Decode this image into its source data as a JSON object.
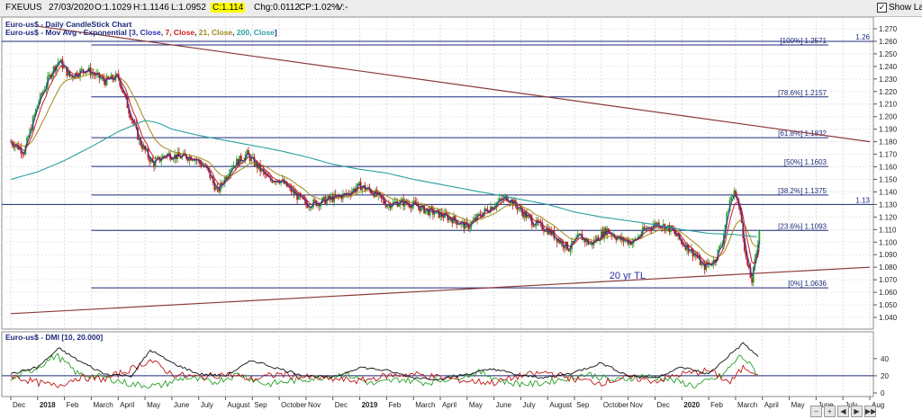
{
  "topbar": {
    "symbol": "FXEUUS",
    "date": "27/03/2020",
    "open": "O:1.1029",
    "high": "H:1.1146",
    "low": "L:1.0952",
    "close": "C:1.114",
    "change": "Chg:0.0112",
    "change_pct": "CP:1.02%",
    "volume": "V:-",
    "show_last_label": "Show Last",
    "show_last_checked": true
  },
  "chart_data": [
    {
      "type": "candlestick",
      "title": "Euro-us$ - Daily CandleStick Chart",
      "subtitle_prefix": "Euro-us$ - Mov Avg - Exponential [",
      "ma_legend": [
        {
          "text": "3, Close",
          "color": "#2d2fa8"
        },
        {
          "text": "7, Close",
          "color": "#d01e1e"
        },
        {
          "text": "21, Close",
          "color": "#a08a1a"
        },
        {
          "text": "200, Close",
          "color": "#2aa0a0"
        }
      ],
      "subtitle_suffix": "]",
      "ylim": [
        1.035,
        1.275
      ],
      "yticks": [
        "1.270",
        "1.260",
        "1.250",
        "1.240",
        "1.230",
        "1.220",
        "1.210",
        "1.200",
        "1.190",
        "1.180",
        "1.170",
        "1.160",
        "1.150",
        "1.140",
        "1.130",
        "1.120",
        "1.110",
        "1.100",
        "1.090",
        "1.080",
        "1.070",
        "1.060",
        "1.050",
        "1.040"
      ],
      "x_months": [
        "Dec",
        "2018",
        "Feb",
        "March",
        "April",
        "May",
        "June",
        "July",
        "August",
        "Sep",
        "October",
        "Nov",
        "Dec",
        "2019",
        "Feb",
        "March",
        "April",
        "May",
        "June",
        "July",
        "August",
        "Sep",
        "October",
        "Nov",
        "Dec",
        "2020",
        "Feb",
        "March",
        "April",
        "May",
        "June",
        "July",
        "Aug"
      ],
      "x_months_bold": [
        "2018",
        "2019",
        "2020"
      ],
      "x_month_index_range": [
        0,
        32
      ],
      "data_end_month_index": 27.9,
      "price_anchors": [
        [
          0.0,
          1.18
        ],
        [
          0.5,
          1.172
        ],
        [
          1.0,
          1.21
        ],
        [
          1.5,
          1.235
        ],
        [
          1.8,
          1.245
        ],
        [
          2.2,
          1.232
        ],
        [
          2.8,
          1.238
        ],
        [
          3.5,
          1.228
        ],
        [
          4.0,
          1.232
        ],
        [
          4.4,
          1.205
        ],
        [
          4.8,
          1.18
        ],
        [
          5.3,
          1.162
        ],
        [
          5.8,
          1.17
        ],
        [
          6.3,
          1.168
        ],
        [
          6.8,
          1.168
        ],
        [
          7.3,
          1.158
        ],
        [
          7.7,
          1.14
        ],
        [
          8.2,
          1.16
        ],
        [
          8.8,
          1.17
        ],
        [
          9.2,
          1.16
        ],
        [
          9.6,
          1.15
        ],
        [
          10.0,
          1.15
        ],
        [
          10.5,
          1.14
        ],
        [
          11.0,
          1.13
        ],
        [
          11.5,
          1.132
        ],
        [
          12.0,
          1.135
        ],
        [
          12.5,
          1.138
        ],
        [
          13.0,
          1.145
        ],
        [
          13.5,
          1.14
        ],
        [
          14.0,
          1.13
        ],
        [
          14.5,
          1.132
        ],
        [
          15.0,
          1.13
        ],
        [
          15.5,
          1.125
        ],
        [
          16.0,
          1.122
        ],
        [
          16.5,
          1.118
        ],
        [
          17.0,
          1.112
        ],
        [
          17.5,
          1.122
        ],
        [
          18.0,
          1.13
        ],
        [
          18.5,
          1.136
        ],
        [
          19.0,
          1.125
        ],
        [
          19.5,
          1.115
        ],
        [
          20.0,
          1.11
        ],
        [
          20.5,
          1.1
        ],
        [
          20.8,
          1.095
        ],
        [
          21.2,
          1.105
        ],
        [
          21.6,
          1.098
        ],
        [
          22.2,
          1.11
        ],
        [
          22.7,
          1.102
        ],
        [
          23.2,
          1.1
        ],
        [
          23.6,
          1.11
        ],
        [
          24.1,
          1.115
        ],
        [
          24.6,
          1.11
        ],
        [
          25.0,
          1.1
        ],
        [
          25.5,
          1.09
        ],
        [
          25.8,
          1.08
        ],
        [
          26.2,
          1.085
        ],
        [
          26.5,
          1.1
        ],
        [
          26.8,
          1.135
        ],
        [
          27.0,
          1.14
        ],
        [
          27.2,
          1.12
        ],
        [
          27.4,
          1.085
        ],
        [
          27.6,
          1.068
        ],
        [
          27.8,
          1.095
        ],
        [
          27.9,
          1.114
        ]
      ],
      "ema200_anchors": [
        [
          0.0,
          1.15
        ],
        [
          1.0,
          1.156
        ],
        [
          2.0,
          1.165
        ],
        [
          3.0,
          1.176
        ],
        [
          4.0,
          1.188
        ],
        [
          5.0,
          1.197
        ],
        [
          5.5,
          1.195
        ],
        [
          6.0,
          1.19
        ],
        [
          7.0,
          1.185
        ],
        [
          8.0,
          1.181
        ],
        [
          9.0,
          1.177
        ],
        [
          10.0,
          1.173
        ],
        [
          11.0,
          1.168
        ],
        [
          12.0,
          1.162
        ],
        [
          13.0,
          1.158
        ],
        [
          14.0,
          1.155
        ],
        [
          15.0,
          1.15
        ],
        [
          16.0,
          1.146
        ],
        [
          17.0,
          1.142
        ],
        [
          18.0,
          1.138
        ],
        [
          19.0,
          1.134
        ],
        [
          20.0,
          1.13
        ],
        [
          21.0,
          1.124
        ],
        [
          22.0,
          1.12
        ],
        [
          23.0,
          1.117
        ],
        [
          24.0,
          1.114
        ],
        [
          25.0,
          1.11
        ],
        [
          26.0,
          1.107
        ],
        [
          27.0,
          1.106
        ],
        [
          27.9,
          1.104
        ]
      ],
      "fibonacci": [
        {
          "label": "[100%] 1.2571",
          "value": 1.2571,
          "x_start": 3.0
        },
        {
          "label": "[78.6%] 1.2157",
          "value": 1.2157,
          "x_start": 3.0
        },
        {
          "label": "[61.8%] 1.1832",
          "value": 1.1832,
          "x_start": 3.0
        },
        {
          "label": "[50%] 1.1603",
          "value": 1.1603,
          "x_start": 3.0
        },
        {
          "label": "[38.2%] 1.1375",
          "value": 1.1375,
          "x_start": 3.0
        },
        {
          "label": "[23.6%] 1.1093",
          "value": 1.1093,
          "x_start": 3.0
        },
        {
          "label": "[0%] 1.0636",
          "value": 1.0636,
          "x_start": 3.0
        }
      ],
      "horizontal_lines": [
        {
          "label": "1.26",
          "value": 1.26
        },
        {
          "label": "1.13",
          "value": 1.13
        }
      ],
      "trendlines": [
        {
          "label": "",
          "from": [
            1.0,
            1.272
          ],
          "to": [
            32.0,
            1.18
          ],
          "color": "#8b3a3a"
        },
        {
          "label": "20 yr TL",
          "from": [
            0.0,
            1.043
          ],
          "to": [
            32.0,
            1.08
          ],
          "color": "#8b3a3a",
          "label_pos": [
            22.3,
            1.071
          ]
        }
      ],
      "colors": {
        "up": "#2aa02a",
        "down": "#c01818",
        "ema3": "#2d2fa8",
        "ema7": "#d01e1e",
        "ema21": "#a08a1a",
        "ema200": "#2aa0a0",
        "fib": "#1d2a7a"
      }
    },
    {
      "type": "line",
      "title": "Euro-us$ - DMI [10, 20.000]",
      "ylim": [
        0,
        65
      ],
      "yticks": [
        "40",
        "20",
        "0"
      ],
      "threshold": 20,
      "adx_anchors": [
        [
          0,
          22
        ],
        [
          1,
          30
        ],
        [
          1.8,
          52
        ],
        [
          2.5,
          38
        ],
        [
          3.5,
          22
        ],
        [
          4.5,
          20
        ],
        [
          5.2,
          50
        ],
        [
          6,
          35
        ],
        [
          7,
          22
        ],
        [
          8,
          20
        ],
        [
          9,
          38
        ],
        [
          10,
          28
        ],
        [
          11,
          20
        ],
        [
          12,
          18
        ],
        [
          13,
          30
        ],
        [
          14,
          26
        ],
        [
          15,
          18
        ],
        [
          16,
          16
        ],
        [
          17,
          22
        ],
        [
          18,
          28
        ],
        [
          19,
          20
        ],
        [
          20,
          18
        ],
        [
          21,
          24
        ],
        [
          22,
          35
        ],
        [
          23,
          20
        ],
        [
          24,
          18
        ],
        [
          25,
          30
        ],
        [
          26,
          22
        ],
        [
          26.8,
          45
        ],
        [
          27.3,
          58
        ],
        [
          27.9,
          40
        ]
      ],
      "plus_di_anchors": [
        [
          0,
          15
        ],
        [
          1,
          30
        ],
        [
          1.7,
          44
        ],
        [
          2.5,
          22
        ],
        [
          3.5,
          18
        ],
        [
          4.5,
          10
        ],
        [
          5.5,
          8
        ],
        [
          6.5,
          18
        ],
        [
          7.5,
          12
        ],
        [
          8.5,
          22
        ],
        [
          9.5,
          10
        ],
        [
          10.5,
          14
        ],
        [
          11.5,
          18
        ],
        [
          12.5,
          22
        ],
        [
          13.5,
          10
        ],
        [
          14.5,
          16
        ],
        [
          15.5,
          12
        ],
        [
          16.5,
          18
        ],
        [
          17.5,
          24
        ],
        [
          18.5,
          12
        ],
        [
          19.5,
          10
        ],
        [
          20.5,
          16
        ],
        [
          21.5,
          22
        ],
        [
          22.5,
          14
        ],
        [
          23.5,
          20
        ],
        [
          24.5,
          16
        ],
        [
          25.5,
          8
        ],
        [
          26.5,
          20
        ],
        [
          27.2,
          44
        ],
        [
          27.9,
          20
        ]
      ],
      "minus_di_anchors": [
        [
          0,
          20
        ],
        [
          1,
          12
        ],
        [
          1.7,
          8
        ],
        [
          2.5,
          18
        ],
        [
          3.5,
          16
        ],
        [
          4.5,
          28
        ],
        [
          5.2,
          38
        ],
        [
          6,
          22
        ],
        [
          7,
          18
        ],
        [
          8,
          22
        ],
        [
          9,
          16
        ],
        [
          10,
          22
        ],
        [
          11,
          18
        ],
        [
          12,
          16
        ],
        [
          13,
          14
        ],
        [
          14,
          20
        ],
        [
          15,
          22
        ],
        [
          16,
          18
        ],
        [
          17,
          14
        ],
        [
          18,
          12
        ],
        [
          19,
          20
        ],
        [
          20,
          24
        ],
        [
          21,
          16
        ],
        [
          22,
          12
        ],
        [
          23,
          18
        ],
        [
          24,
          14
        ],
        [
          25,
          22
        ],
        [
          26,
          26
        ],
        [
          26.8,
          12
        ],
        [
          27.3,
          30
        ],
        [
          27.9,
          22
        ]
      ],
      "colors": {
        "adx": "#111111",
        "plus_di": "#2aa02a",
        "minus_di": "#c01818",
        "threshold": "#1d2a7a"
      }
    }
  ]
}
